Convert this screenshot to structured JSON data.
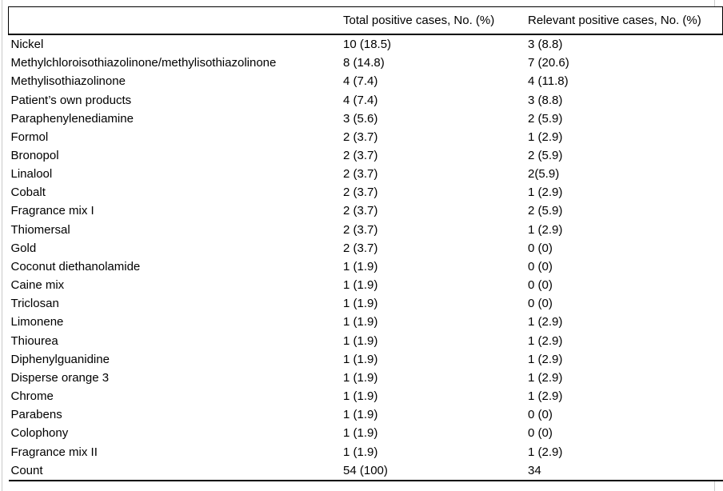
{
  "table": {
    "columns": [
      "",
      "Total positive cases, No. (%)",
      "Relevant positive cases, No. (%)"
    ],
    "rows": [
      {
        "substance": "Nickel",
        "total": "10 (18.5)",
        "relevant": "3 (8.8)"
      },
      {
        "substance": "Methylchloroisothiazolinone/methylisothiazolinone",
        "total": "8 (14.8)",
        "relevant": "7 (20.6)"
      },
      {
        "substance": "Methylisothiazolinone",
        "total": "4 (7.4)",
        "relevant": "4 (11.8)"
      },
      {
        "substance": "Patient’s own products",
        "total": "4 (7.4)",
        "relevant": "3 (8.8)"
      },
      {
        "substance": "Paraphenylenediamine",
        "total": "3 (5.6)",
        "relevant": "2 (5.9)"
      },
      {
        "substance": "Formol",
        "total": "2 (3.7)",
        "relevant": "1 (2.9)"
      },
      {
        "substance": "Bronopol",
        "total": "2 (3.7)",
        "relevant": "2 (5.9)"
      },
      {
        "substance": "Linalool",
        "total": "2 (3.7)",
        "relevant": "2(5.9)"
      },
      {
        "substance": "Cobalt",
        "total": "2 (3.7)",
        "relevant": "1 (2.9)"
      },
      {
        "substance": "Fragrance mix I",
        "total": "2 (3.7)",
        "relevant": "2 (5.9)"
      },
      {
        "substance": "Thiomersal",
        "total": "2 (3.7)",
        "relevant": "1 (2.9)"
      },
      {
        "substance": "Gold",
        "total": "2 (3.7)",
        "relevant": "0 (0)"
      },
      {
        "substance": "Coconut diethanolamide",
        "total": "1 (1.9)",
        "relevant": "0 (0)"
      },
      {
        "substance": "Caine mix",
        "total": "1 (1.9)",
        "relevant": "0 (0)"
      },
      {
        "substance": "Triclosan",
        "total": "1 (1.9)",
        "relevant": "0 (0)"
      },
      {
        "substance": "Limonene",
        "total": "1 (1.9)",
        "relevant": "1 (2.9)"
      },
      {
        "substance": "Thiourea",
        "total": "1 (1.9)",
        "relevant": "1 (2.9)"
      },
      {
        "substance": "Diphenylguanidine",
        "total": "1 (1.9)",
        "relevant": "1 (2.9)"
      },
      {
        "substance": "Disperse orange 3",
        "total": "1 (1.9)",
        "relevant": "1 (2.9)"
      },
      {
        "substance": "Chrome",
        "total": "1 (1.9)",
        "relevant": "1 (2.9)"
      },
      {
        "substance": "Parabens",
        "total": "1 (1.9)",
        "relevant": "0 (0)"
      },
      {
        "substance": "Colophony",
        "total": "1 (1.9)",
        "relevant": "0 (0)"
      },
      {
        "substance": "Fragrance mix II",
        "total": "1 (1.9)",
        "relevant": "1 (2.9)"
      },
      {
        "substance": "Count",
        "total": "54 (100)",
        "relevant": "34"
      }
    ]
  }
}
